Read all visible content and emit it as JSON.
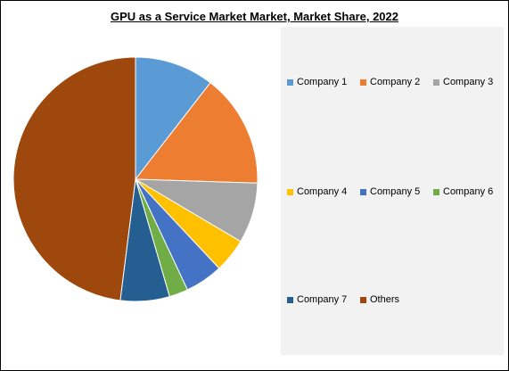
{
  "chart_data": {
    "type": "pie",
    "title": "GPU as a Service Market Market, Market Share, 2022",
    "legend_position": "right",
    "series": [
      {
        "name": "Company 1",
        "value": 10.5,
        "color": "#5b9bd5"
      },
      {
        "name": "Company 2",
        "value": 15,
        "color": "#ed7d31"
      },
      {
        "name": "Company 3",
        "value": 8,
        "color": "#a5a5a5"
      },
      {
        "name": "Company 4",
        "value": 4.5,
        "color": "#ffc000"
      },
      {
        "name": "Company 5",
        "value": 5,
        "color": "#4472c4"
      },
      {
        "name": "Company 6",
        "value": 2.5,
        "color": "#70ad47"
      },
      {
        "name": "Company 7",
        "value": 6.5,
        "color": "#255e91"
      },
      {
        "name": "Others",
        "value": 48,
        "color": "#9e480e"
      }
    ]
  }
}
